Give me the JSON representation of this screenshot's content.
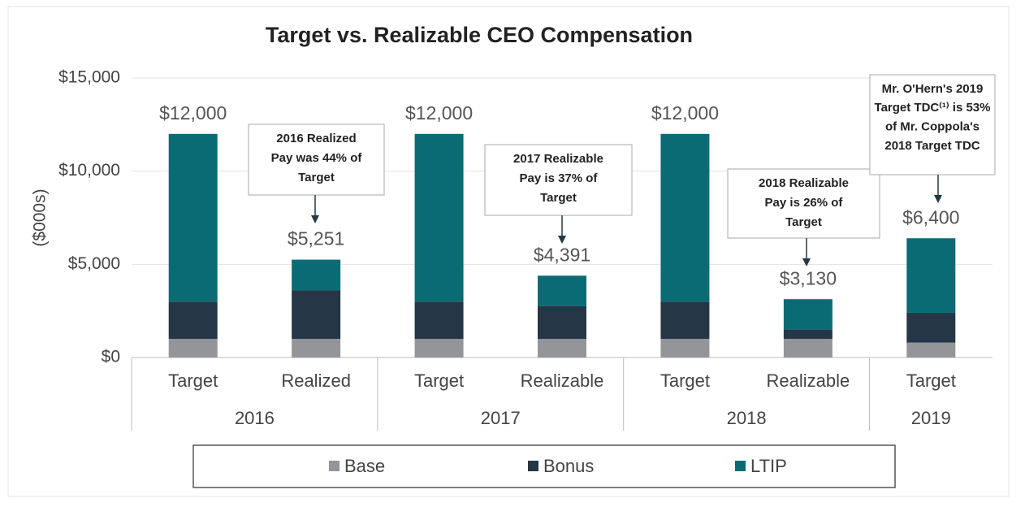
{
  "chart_data": {
    "type": "stacked_bar",
    "title": "Target vs. Realizable CEO Compensation",
    "y_label": "($000s)",
    "categories": [
      "Target",
      "Realized",
      "Target",
      "Realizable",
      "Target",
      "Realizable",
      "Target"
    ],
    "category_groups": [
      "2016",
      "2016",
      "2017",
      "2017",
      "2018",
      "2018",
      "2019"
    ],
    "series": [
      {
        "name": "Base",
        "color": "#939598",
        "values": [
          1000,
          1000,
          1000,
          1000,
          1000,
          1000,
          800
        ]
      },
      {
        "name": "Bonus",
        "color": "#253746",
        "values": [
          2000,
          2600,
          2000,
          1750,
          2000,
          500,
          1600
        ]
      },
      {
        "name": "LTIP",
        "color": "#0b6b74",
        "values": [
          9000,
          1651,
          9000,
          1641,
          9000,
          1630,
          4000
        ]
      }
    ],
    "totals": [
      12000,
      5251,
      12000,
      4391,
      12000,
      3130,
      6400
    ],
    "total_labels": [
      "$12,000",
      "$5,251",
      "$12,000",
      "$4,391",
      "$12,000",
      "$3,130",
      "$6,400"
    ],
    "ylim": [
      0,
      15000
    ],
    "yticks": [
      {
        "value": 0,
        "label": "$0"
      },
      {
        "value": 5000,
        "label": "$5,000"
      },
      {
        "value": 10000,
        "label": "$10,000"
      },
      {
        "value": 15000,
        "label": "$15,000"
      }
    ],
    "grid": true,
    "legend": "bottom",
    "annotations": [
      {
        "lines": [
          "2016 Realized",
          "Pay was 44% of",
          "Target"
        ]
      },
      {
        "lines": [
          "2017 Realizable",
          "Pay is 37% of",
          "Target"
        ]
      },
      {
        "lines": [
          "2018 Realizable",
          "Pay is 26% of",
          "Target"
        ]
      },
      {
        "lines": [
          "Mr. O'Hern's 2019",
          "Target TDC⁽¹⁾ is 53%",
          "of Mr. Coppola's",
          "2018 Target TDC"
        ]
      }
    ]
  }
}
